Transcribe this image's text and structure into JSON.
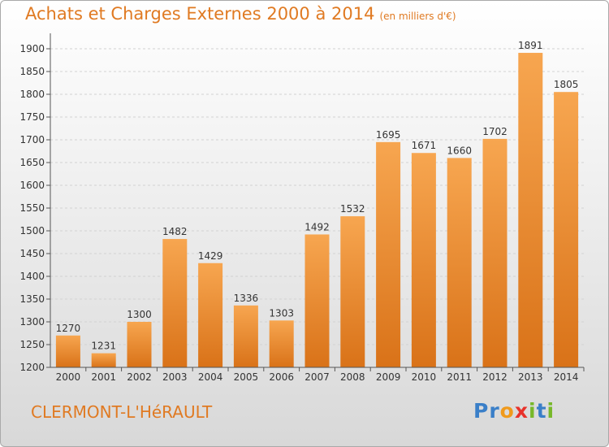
{
  "header": {
    "title": "Achats et Charges Externes 2000 à 2014",
    "subtitle": "(en milliers d'€)"
  },
  "footer": {
    "location": "CLERMONT-L'HéRAULT"
  },
  "logo": {
    "letters": [
      "P",
      "r",
      "o",
      "x",
      "i",
      "t",
      "i"
    ],
    "colors": [
      "#3a7fc8",
      "#3a7fc8",
      "#f09a1c",
      "#e8322b",
      "#77b82a",
      "#3a7fc8",
      "#77b82a"
    ]
  },
  "colors": {
    "bar_top": "#f7a650",
    "bar_bottom": "#d97218",
    "text_accent": "#e07a22"
  },
  "chart_data": {
    "type": "bar",
    "categories": [
      "2000",
      "2001",
      "2002",
      "2003",
      "2004",
      "2005",
      "2006",
      "2007",
      "2008",
      "2009",
      "2010",
      "2011",
      "2012",
      "2013",
      "2014"
    ],
    "values": [
      1270,
      1231,
      1300,
      1482,
      1429,
      1336,
      1303,
      1492,
      1532,
      1695,
      1671,
      1660,
      1702,
      1891,
      1805
    ],
    "yticks": [
      1200,
      1250,
      1300,
      1350,
      1400,
      1450,
      1500,
      1550,
      1600,
      1650,
      1700,
      1750,
      1800,
      1850,
      1900
    ],
    "ylim": [
      1200,
      1925
    ],
    "grid": true,
    "xlabel": "",
    "ylabel": ""
  }
}
